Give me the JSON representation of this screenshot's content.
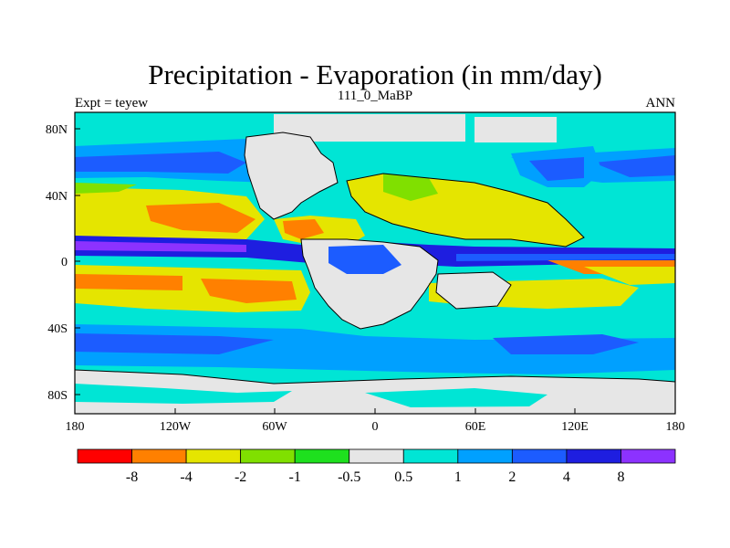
{
  "title": "Precipitation - Evaporation (in mm/day)",
  "subtitle_left": "Expt = teyew",
  "subtitle_center": "111_0_MaBP",
  "subtitle_right": "ANN",
  "x_ticks": [
    "180",
    "120W",
    "60W",
    "0",
    "60E",
    "120E",
    "180"
  ],
  "y_ticks": [
    "80N",
    "40N",
    "0",
    "40S",
    "80S"
  ],
  "colorbar": {
    "colors": [
      "#ff0000",
      "#ff8000",
      "#e5e500",
      "#80e000",
      "#1ee01e",
      "#e6e6e6",
      "#00e5d5",
      "#00a0ff",
      "#1c5cff",
      "#1e1ee0",
      "#8c32ff"
    ],
    "labels": [
      "-8",
      "-4",
      "-2",
      "-1",
      "-0.5",
      "0.5",
      "1",
      "2",
      "4",
      "8"
    ]
  }
}
